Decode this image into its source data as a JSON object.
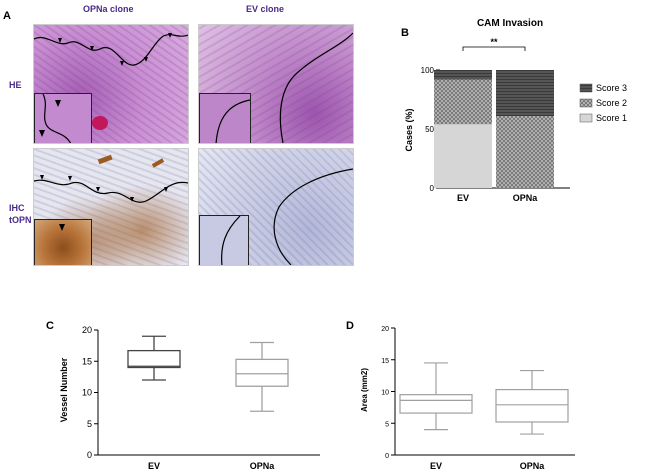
{
  "panel_a": {
    "letter": "A",
    "col_headers": [
      "OPNa clone",
      "EV clone"
    ],
    "row_labels": {
      "he": "HE",
      "ihc_line1": "IHC",
      "ihc_line2": "tOPN"
    }
  },
  "chart_data": [
    {
      "panel": "B",
      "type": "bar",
      "stacked": true,
      "title": "CAM Invasion",
      "categories": [
        "EV",
        "OPNa"
      ],
      "series": [
        {
          "name": "Score 1",
          "values": [
            54,
            0
          ]
        },
        {
          "name": "Score 2",
          "values": [
            38,
            61
          ]
        },
        {
          "name": "Score 3",
          "values": [
            8,
            39
          ]
        }
      ],
      "legend_order": [
        "Score 3",
        "Score 2",
        "Score 1"
      ],
      "legend_position": "right",
      "colors": {
        "Score 1": "#d6d6d6",
        "Score 2": "#9a9a9a",
        "Score 3": "#555555"
      },
      "ylabel": "Cases (%)",
      "ylim": [
        0,
        100
      ],
      "yticks": [
        0,
        50,
        100
      ],
      "significance": "**"
    },
    {
      "panel": "C",
      "type": "boxplot",
      "categories": [
        "EV",
        "OPNa"
      ],
      "boxes": [
        {
          "name": "EV",
          "min": 12,
          "q1": 14,
          "median": 14.2,
          "q3": 16.7,
          "max": 19
        },
        {
          "name": "OPNa",
          "min": 7,
          "q1": 11,
          "median": 13,
          "q3": 15.3,
          "max": 18
        }
      ],
      "colors": {
        "EV": "#444444",
        "OPNa": "#a0a0a0"
      },
      "ylabel": "Vessel Number",
      "ylim": [
        0,
        20
      ],
      "yticks": [
        0,
        5,
        10,
        15,
        20
      ]
    },
    {
      "panel": "D",
      "type": "boxplot",
      "categories": [
        "EV",
        "OPNa"
      ],
      "boxes": [
        {
          "name": "EV",
          "min": 4,
          "q1": 6.6,
          "median": 8.6,
          "q3": 9.5,
          "max": 14.5
        },
        {
          "name": "OPNa",
          "min": 3.3,
          "q1": 5.2,
          "median": 7.9,
          "q3": 10.3,
          "max": 13.3
        }
      ],
      "colors": {
        "EV": "#a0a0a0",
        "OPNa": "#a0a0a0"
      },
      "ylabel": "Area (mm2)",
      "ylim": [
        0,
        20
      ],
      "yticks": [
        0,
        5,
        10,
        15,
        20
      ]
    }
  ]
}
